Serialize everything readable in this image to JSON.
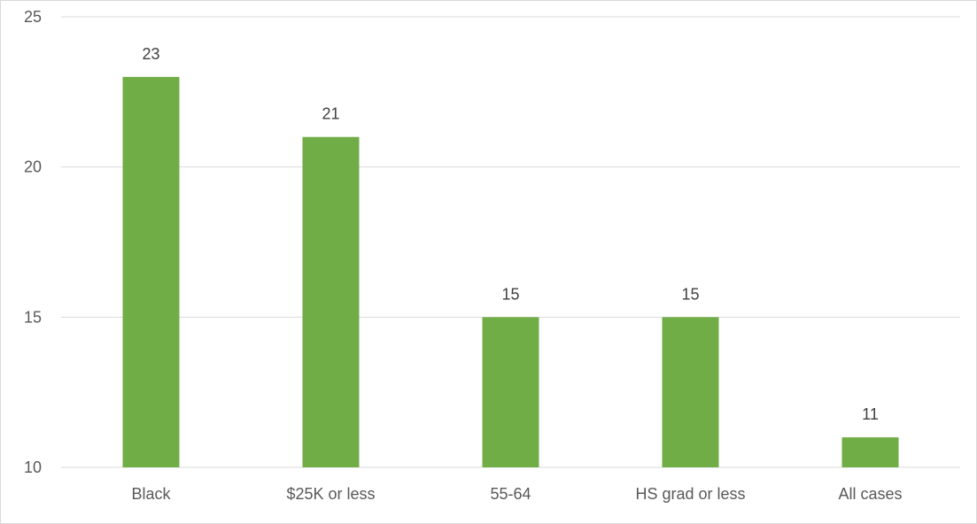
{
  "chart_data": {
    "type": "bar",
    "title": "",
    "xlabel": "",
    "ylabel": "",
    "categories": [
      "Black",
      "$25K or less",
      "55-64",
      "HS grad or less",
      "All cases"
    ],
    "values": [
      23,
      21,
      15,
      15,
      11
    ],
    "data_labels": [
      "23",
      "21",
      "15",
      "15",
      "11"
    ],
    "ylim": [
      10,
      25
    ],
    "yticks": [
      10,
      15,
      20,
      25
    ],
    "ytick_labels": [
      "10",
      "15",
      "20",
      "25"
    ],
    "grid": true,
    "legend": "none",
    "bar_color": "#70ad47",
    "grid_color": "#d9d9d9"
  }
}
